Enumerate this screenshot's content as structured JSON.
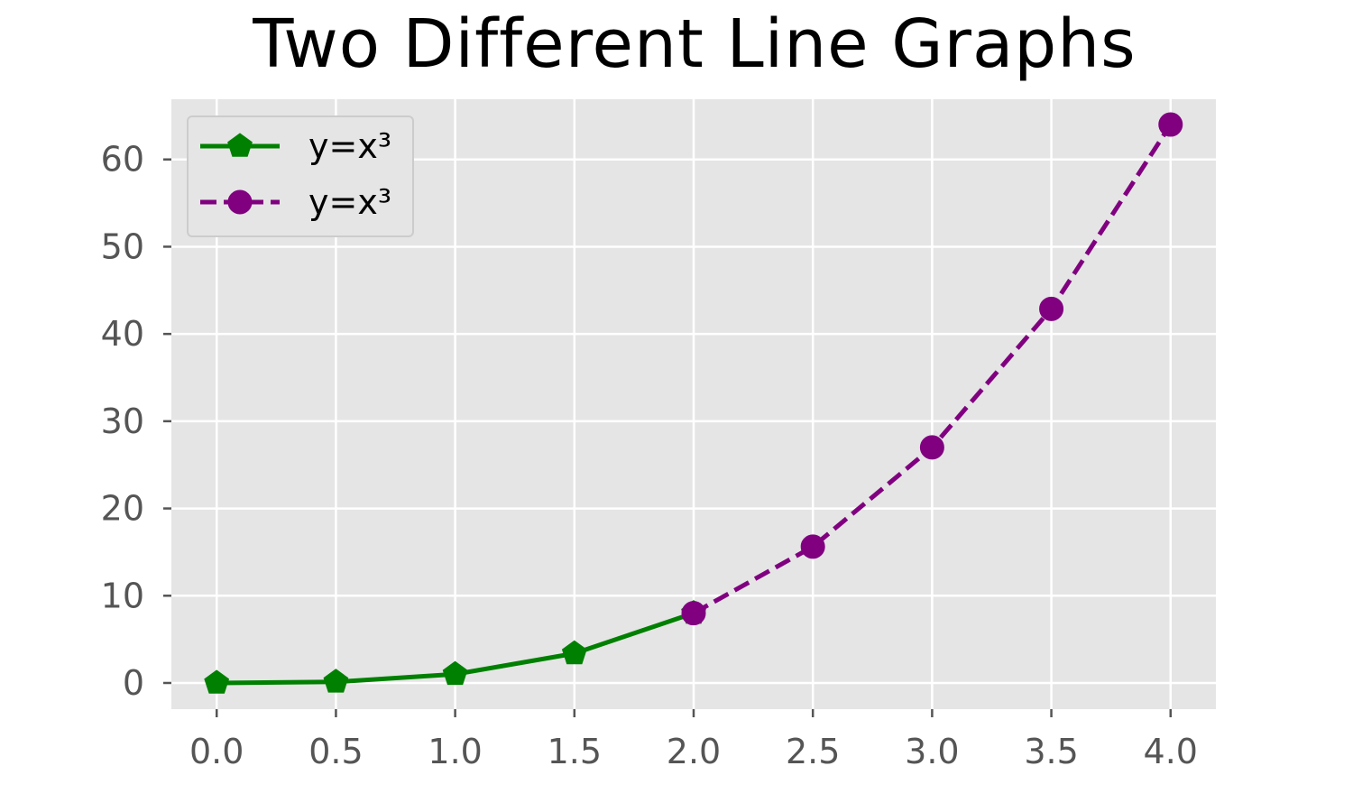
{
  "chart_data": {
    "type": "line",
    "title": "Two Different Line Graphs",
    "xlabel": "",
    "ylabel": "",
    "xlim": [
      -0.19,
      4.19
    ],
    "ylim": [
      -3.0,
      66.9
    ],
    "xticks": [
      0.0,
      0.5,
      1.0,
      1.5,
      2.0,
      2.5,
      3.0,
      3.5,
      4.0
    ],
    "xtick_labels": [
      "0.0",
      "0.5",
      "1.0",
      "1.5",
      "2.0",
      "2.5",
      "3.0",
      "3.5",
      "4.0"
    ],
    "yticks": [
      0,
      10,
      20,
      30,
      40,
      50,
      60
    ],
    "ytick_labels": [
      "0",
      "10",
      "20",
      "30",
      "40",
      "50",
      "60"
    ],
    "grid": true,
    "legend_position": "top-left",
    "background": "#e5e5e5",
    "series": [
      {
        "name": "y=x³",
        "color": "#008000",
        "line_style": "solid",
        "marker": "pentagon",
        "x": [
          0.0,
          0.5,
          1.0,
          1.5,
          2.0
        ],
        "y": [
          0.0,
          0.125,
          1.0,
          3.375,
          8.0
        ]
      },
      {
        "name": "y=x³",
        "color": "#800080",
        "line_style": "dashed",
        "marker": "circle",
        "x": [
          2.0,
          2.5,
          3.0,
          3.5,
          4.0
        ],
        "y": [
          8.0,
          15.625,
          27.0,
          42.875,
          64.0
        ]
      }
    ]
  }
}
